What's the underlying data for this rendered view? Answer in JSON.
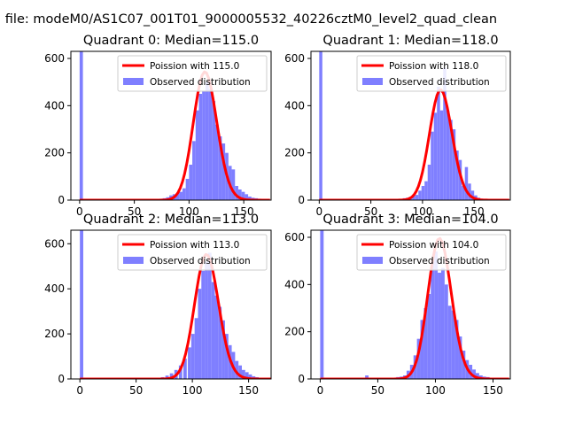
{
  "figure_title": "n file: modeM0/AS1C07_001T01_9000005532_40226cztM0_level2_quad_clean",
  "colors": {
    "observed": "#7f7fff",
    "poisson": "#ff0000",
    "axis": "#000000"
  },
  "legend": {
    "observed_label": "Observed distribution"
  },
  "chart_data": [
    {
      "type": "bar",
      "title": "Quadrant 0: Median=115.0",
      "median": 115.0,
      "poisson_label": "Poission with 115.0",
      "legend_position": "upper-right",
      "xlim": [
        -8,
        175
      ],
      "ylim": [
        0,
        630
      ],
      "xticks": [
        0,
        50,
        100,
        150
      ],
      "yticks": [
        0,
        200,
        400,
        600
      ],
      "bins": [
        [
          0,
          3,
          640
        ],
        [
          67,
          3,
          2
        ],
        [
          70,
          3,
          4
        ],
        [
          73,
          3,
          6
        ],
        [
          76,
          3,
          8
        ],
        [
          79,
          3,
          12
        ],
        [
          82,
          3,
          20
        ],
        [
          85,
          3,
          25
        ],
        [
          88,
          3,
          30
        ],
        [
          91,
          3,
          35
        ],
        [
          94,
          3,
          50
        ],
        [
          97,
          3,
          90
        ],
        [
          100,
          3,
          150
        ],
        [
          103,
          3,
          250
        ],
        [
          106,
          3,
          380
        ],
        [
          109,
          3,
          450
        ],
        [
          112,
          3,
          460
        ],
        [
          115,
          3,
          500
        ],
        [
          118,
          3,
          470
        ],
        [
          121,
          3,
          420
        ],
        [
          124,
          3,
          320
        ],
        [
          127,
          3,
          270
        ],
        [
          130,
          3,
          240
        ],
        [
          133,
          3,
          200
        ],
        [
          136,
          3,
          145
        ],
        [
          139,
          3,
          130
        ],
        [
          142,
          3,
          60
        ],
        [
          145,
          3,
          45
        ],
        [
          148,
          3,
          35
        ],
        [
          151,
          3,
          25
        ],
        [
          154,
          3,
          15
        ],
        [
          157,
          3,
          10
        ],
        [
          160,
          3,
          8
        ],
        [
          163,
          3,
          6
        ]
      ]
    },
    {
      "type": "bar",
      "title": "Quadrant 1: Median=118.0",
      "median": 118.0,
      "poisson_label": "Poission with 118.0",
      "legend_position": "upper-right",
      "xlim": [
        -8,
        185
      ],
      "ylim": [
        0,
        630
      ],
      "xticks": [
        0,
        50,
        100,
        150
      ],
      "yticks": [
        0,
        200,
        400,
        600
      ],
      "bins": [
        [
          0,
          3,
          640
        ],
        [
          75,
          3,
          3
        ],
        [
          78,
          3,
          5
        ],
        [
          81,
          3,
          8
        ],
        [
          84,
          3,
          10
        ],
        [
          87,
          3,
          14
        ],
        [
          90,
          3,
          18
        ],
        [
          93,
          3,
          22
        ],
        [
          96,
          3,
          40
        ],
        [
          99,
          3,
          60
        ],
        [
          102,
          3,
          80
        ],
        [
          105,
          3,
          150
        ],
        [
          108,
          3,
          290
        ],
        [
          111,
          3,
          370
        ],
        [
          114,
          3,
          480
        ],
        [
          117,
          3,
          380
        ],
        [
          120,
          3,
          560
        ],
        [
          123,
          3,
          380
        ],
        [
          126,
          3,
          340
        ],
        [
          129,
          3,
          300
        ],
        [
          132,
          3,
          210
        ],
        [
          135,
          3,
          170
        ],
        [
          138,
          3,
          60
        ],
        [
          141,
          3,
          140
        ],
        [
          144,
          3,
          70
        ],
        [
          147,
          3,
          40
        ],
        [
          150,
          3,
          20
        ],
        [
          153,
          3,
          10
        ],
        [
          156,
          3,
          6
        ],
        [
          159,
          3,
          3
        ]
      ]
    },
    {
      "type": "bar",
      "title": "Quadrant 2: Median=113.0",
      "median": 113.0,
      "poisson_label": "Poission with 113.0",
      "legend_position": "upper-right",
      "xlim": [
        -8,
        170
      ],
      "ylim": [
        0,
        660
      ],
      "xticks": [
        0,
        50,
        100,
        150
      ],
      "yticks": [
        0,
        200,
        400,
        600
      ],
      "bins": [
        [
          0,
          3,
          680
        ],
        [
          68,
          3,
          3
        ],
        [
          72,
          3,
          8
        ],
        [
          76,
          3,
          15
        ],
        [
          80,
          3,
          25
        ],
        [
          84,
          3,
          40
        ],
        [
          88,
          3,
          60
        ],
        [
          92,
          3,
          90
        ],
        [
          96,
          3,
          140
        ],
        [
          99,
          3,
          200
        ],
        [
          102,
          3,
          270
        ],
        [
          105,
          3,
          400
        ],
        [
          108,
          3,
          480
        ],
        [
          111,
          3,
          520
        ],
        [
          114,
          3,
          560
        ],
        [
          117,
          3,
          430
        ],
        [
          120,
          3,
          370
        ],
        [
          123,
          3,
          320
        ],
        [
          126,
          3,
          260
        ],
        [
          129,
          3,
          200
        ],
        [
          132,
          3,
          150
        ],
        [
          135,
          3,
          120
        ],
        [
          138,
          3,
          80
        ],
        [
          141,
          3,
          60
        ],
        [
          144,
          3,
          40
        ],
        [
          147,
          3,
          30
        ],
        [
          150,
          3,
          20
        ],
        [
          153,
          3,
          12
        ],
        [
          156,
          3,
          8
        ]
      ]
    },
    {
      "type": "bar",
      "title": "Quadrant 3: Median=104.0",
      "median": 104.0,
      "poisson_label": "Poission with 104.0",
      "legend_position": "upper-right",
      "xlim": [
        -8,
        165
      ],
      "ylim": [
        0,
        630
      ],
      "xticks": [
        0,
        50,
        100,
        150
      ],
      "yticks": [
        0,
        200,
        400,
        600
      ],
      "bins": [
        [
          0,
          3,
          640
        ],
        [
          39,
          3,
          15
        ],
        [
          66,
          3,
          8
        ],
        [
          69,
          3,
          10
        ],
        [
          72,
          3,
          15
        ],
        [
          75,
          3,
          35
        ],
        [
          78,
          3,
          60
        ],
        [
          81,
          3,
          100
        ],
        [
          84,
          3,
          170
        ],
        [
          87,
          3,
          250
        ],
        [
          90,
          3,
          300
        ],
        [
          93,
          3,
          360
        ],
        [
          96,
          3,
          500
        ],
        [
          99,
          3,
          540
        ],
        [
          102,
          3,
          450
        ],
        [
          105,
          3,
          470
        ],
        [
          108,
          3,
          400
        ],
        [
          111,
          3,
          310
        ],
        [
          114,
          3,
          290
        ],
        [
          117,
          3,
          250
        ],
        [
          120,
          3,
          180
        ],
        [
          123,
          3,
          120
        ],
        [
          126,
          3,
          80
        ],
        [
          129,
          3,
          60
        ],
        [
          132,
          3,
          40
        ],
        [
          135,
          3,
          25
        ],
        [
          138,
          3,
          15
        ],
        [
          141,
          3,
          10
        ],
        [
          144,
          3,
          8
        ],
        [
          147,
          3,
          5
        ]
      ]
    }
  ]
}
